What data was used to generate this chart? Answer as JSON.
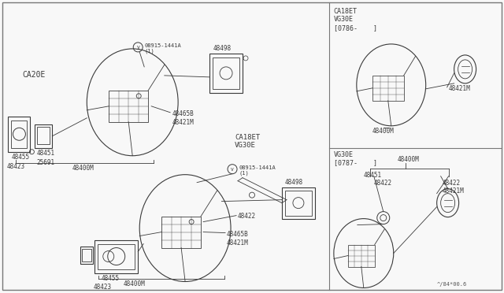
{
  "bg_color": "#ffffff",
  "line_color": "#3a3a3a",
  "main_bg": "#f8f8f8",
  "watermark": "^/84*00.6",
  "labels": {
    "ca20e": "CA20E",
    "ca18et_vg30e_main": "CA18ET\nVG30E",
    "ca18et_vg30e_inset1": "CA18ET\nVG30E\n[0786-    ]",
    "vg30e_inset2": "VG30E\n[0787-    ]",
    "bolt_label": "08915-1441A\n(1)",
    "48498": "48498",
    "48465B": "48465B",
    "48421M": "48421M",
    "48455": "48455",
    "48451": "48451",
    "48423": "48423",
    "25691": "25691",
    "48400M": "48400M",
    "48422": "48422"
  }
}
